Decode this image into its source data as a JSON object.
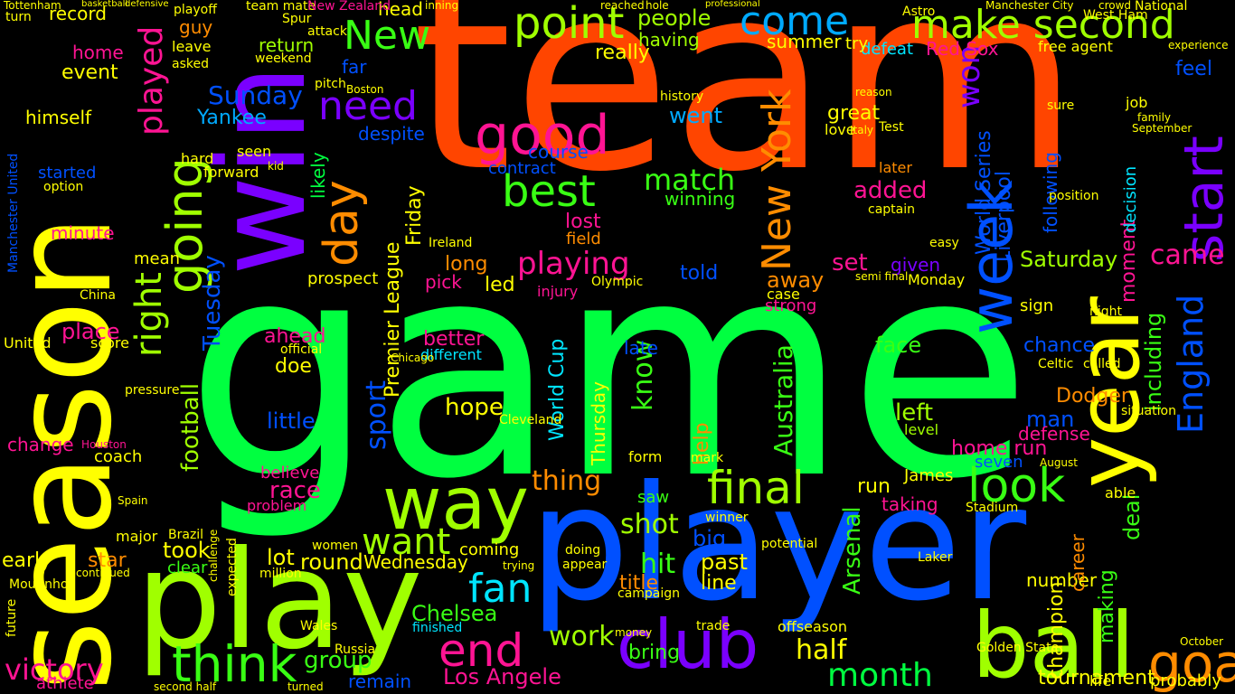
{
  "background": "#000000",
  "palette": [
    "#ff4500",
    "#00ff40",
    "#0050ff",
    "#ffff00",
    "#a0ff00",
    "#7a00ff",
    "#00e5ff",
    "#ff1493",
    "#ff8c00",
    "#39ff14"
  ],
  "words": [
    {
      "text": "team",
      "color": "#ff4500"
    },
    {
      "text": "game",
      "color": "#00ff40"
    },
    {
      "text": "player",
      "color": "#0050ff"
    },
    {
      "text": "season",
      "color": "#ffff00"
    },
    {
      "text": "play",
      "color": "#a0ff00"
    },
    {
      "text": "win",
      "color": "#7a00ff"
    },
    {
      "text": "ball",
      "color": "#a0ff00"
    },
    {
      "text": "year",
      "color": "#ffff00"
    },
    {
      "text": "goal",
      "color": "#ff8c00"
    },
    {
      "text": "point",
      "color": "#a0ff00"
    },
    {
      "text": "make second",
      "color": "#a0ff00"
    },
    {
      "text": "come",
      "color": "#00aaff"
    },
    {
      "text": "way",
      "color": "#a0ff00"
    },
    {
      "text": "club",
      "color": "#7a00ff"
    },
    {
      "text": "good",
      "color": "#ff1493"
    },
    {
      "text": "start",
      "color": "#7a00ff"
    },
    {
      "text": "week",
      "color": "#0050ff"
    },
    {
      "text": "going",
      "color": "#a0ff00"
    },
    {
      "text": "day",
      "color": "#ff8c00"
    },
    {
      "text": "need",
      "color": "#7a00ff"
    },
    {
      "text": "best",
      "color": "#39ff14"
    },
    {
      "text": "think",
      "color": "#39ff14"
    },
    {
      "text": "end",
      "color": "#ff1493"
    },
    {
      "text": "final",
      "color": "#a0ff00"
    },
    {
      "text": "look",
      "color": "#39ff14"
    },
    {
      "text": "New York",
      "color": "#ff8c00"
    },
    {
      "text": "England",
      "color": "#0050ff"
    },
    {
      "text": "fan",
      "color": "#00e5ff"
    },
    {
      "text": "want",
      "color": "#a0ff00"
    },
    {
      "text": "played",
      "color": "#ff1493"
    },
    {
      "text": "right",
      "color": "#a0ff00"
    },
    {
      "text": "New",
      "color": "#39ff14"
    },
    {
      "text": "won",
      "color": "#7a00ff"
    },
    {
      "text": "match",
      "color": "#39ff14"
    },
    {
      "text": "playing",
      "color": "#ff1493"
    },
    {
      "text": "month",
      "color": "#00ff40"
    },
    {
      "text": "half",
      "color": "#ffff00"
    },
    {
      "text": "work",
      "color": "#a0ff00"
    },
    {
      "text": "Chelsea",
      "color": "#39ff14"
    },
    {
      "text": "Los Angele",
      "color": "#ff1493"
    },
    {
      "text": "victory",
      "color": "#ff1493"
    },
    {
      "text": "group",
      "color": "#39ff14"
    },
    {
      "text": "shot",
      "color": "#a0ff00"
    },
    {
      "text": "hit",
      "color": "#39ff14"
    },
    {
      "text": "thing",
      "color": "#ff8c00"
    },
    {
      "text": "hope",
      "color": "#ffff00"
    },
    {
      "text": "know",
      "color": "#39ff14"
    },
    {
      "text": "sport",
      "color": "#0050ff"
    },
    {
      "text": "Australia",
      "color": "#39ff14"
    },
    {
      "text": "Arsenal",
      "color": "#39ff14"
    },
    {
      "text": "tournament",
      "color": "#ffff00"
    },
    {
      "text": "came",
      "color": "#ff1493"
    },
    {
      "text": "Saturday",
      "color": "#a0ff00"
    },
    {
      "text": "Sunday",
      "color": "#0050ff"
    },
    {
      "text": "Yankee",
      "color": "#00aaff"
    },
    {
      "text": "football",
      "color": "#a0ff00"
    },
    {
      "text": "Tuesday",
      "color": "#0050ff"
    },
    {
      "text": "Friday",
      "color": "#ffff00"
    },
    {
      "text": "Wednesday",
      "color": "#ffff00"
    },
    {
      "text": "Thursday",
      "color": "#ffff00"
    },
    {
      "text": "World Cup",
      "color": "#00e5ff"
    },
    {
      "text": "World Series",
      "color": "#0050ff"
    },
    {
      "text": "Premier League",
      "color": "#ffff00"
    },
    {
      "text": "Liverpool",
      "color": "#0050ff"
    },
    {
      "text": "Dodger",
      "color": "#ff8c00"
    },
    {
      "text": "home run",
      "color": "#ff1493"
    },
    {
      "text": "champion",
      "color": "#ffff00"
    },
    {
      "text": "making",
      "color": "#39ff14"
    },
    {
      "text": "number",
      "color": "#ffff00"
    },
    {
      "text": "chance",
      "color": "#0050ff"
    },
    {
      "text": "including",
      "color": "#39ff14"
    },
    {
      "text": "following",
      "color": "#0050ff"
    },
    {
      "text": "moment",
      "color": "#ff1493"
    },
    {
      "text": "decision",
      "color": "#00e5ff"
    },
    {
      "text": "career",
      "color": "#ff8c00"
    },
    {
      "text": "deal",
      "color": "#39ff14"
    },
    {
      "text": "added",
      "color": "#ff1493"
    },
    {
      "text": "great",
      "color": "#ffff00"
    },
    {
      "text": "later",
      "color": "#ff8c00"
    },
    {
      "text": "face",
      "color": "#39ff14"
    },
    {
      "text": "left",
      "color": "#a0ff00"
    },
    {
      "text": "set",
      "color": "#ff1493"
    },
    {
      "text": "given",
      "color": "#7a00ff"
    },
    {
      "text": "defense",
      "color": "#ff1493"
    },
    {
      "text": "seven",
      "color": "#0050ff"
    },
    {
      "text": "man",
      "color": "#0050ff"
    },
    {
      "text": "sign",
      "color": "#ffff00"
    },
    {
      "text": "run",
      "color": "#ffff00"
    },
    {
      "text": "James",
      "color": "#ffff00"
    },
    {
      "text": "taking",
      "color": "#ff1493"
    },
    {
      "text": "help",
      "color": "#ff8c00"
    },
    {
      "text": "past",
      "color": "#ffff00"
    },
    {
      "text": "line",
      "color": "#ffff00"
    },
    {
      "text": "big",
      "color": "#0050ff"
    },
    {
      "text": "bring",
      "color": "#39ff14"
    },
    {
      "text": "title",
      "color": "#ff8c00"
    },
    {
      "text": "saw",
      "color": "#39ff14"
    },
    {
      "text": "late",
      "color": "#0050ff"
    },
    {
      "text": "told",
      "color": "#0050ff"
    },
    {
      "text": "away",
      "color": "#ff8c00"
    },
    {
      "text": "led",
      "color": "#ffff00"
    },
    {
      "text": "long",
      "color": "#ff8c00"
    },
    {
      "text": "lost",
      "color": "#ff1493"
    },
    {
      "text": "field",
      "color": "#ff8c00"
    },
    {
      "text": "course",
      "color": "#0050ff"
    },
    {
      "text": "contract",
      "color": "#0050ff"
    },
    {
      "text": "winning",
      "color": "#39ff14"
    },
    {
      "text": "went",
      "color": "#00aaff"
    },
    {
      "text": "despite",
      "color": "#0050ff"
    },
    {
      "text": "likely",
      "color": "#00ff40"
    },
    {
      "text": "people",
      "color": "#a0ff00"
    },
    {
      "text": "really",
      "color": "#ffff00"
    },
    {
      "text": "having",
      "color": "#a0ff00"
    },
    {
      "text": "summer",
      "color": "#ffff00"
    },
    {
      "text": "defeat",
      "color": "#00e5ff"
    },
    {
      "text": "Red Sox",
      "color": "#ff1493"
    },
    {
      "text": "free agent",
      "color": "#ffff00"
    },
    {
      "text": "feel",
      "color": "#0050ff"
    },
    {
      "text": "far",
      "color": "#0050ff"
    },
    {
      "text": "return",
      "color": "#a0ff00"
    },
    {
      "text": "guy",
      "color": "#ff8c00"
    },
    {
      "text": "record",
      "color": "#ffff00"
    },
    {
      "text": "home",
      "color": "#ff1493"
    },
    {
      "text": "event",
      "color": "#ffff00"
    },
    {
      "text": "himself",
      "color": "#ffff00"
    },
    {
      "text": "started",
      "color": "#0050ff"
    },
    {
      "text": "minute",
      "color": "#ff1493"
    },
    {
      "text": "place",
      "color": "#ff1493"
    },
    {
      "text": "score",
      "color": "#ffff00"
    },
    {
      "text": "United",
      "color": "#ffff00"
    },
    {
      "text": "change",
      "color": "#ff1493"
    },
    {
      "text": "coach",
      "color": "#ffff00"
    },
    {
      "text": "early",
      "color": "#ffff00"
    },
    {
      "text": "star",
      "color": "#ff8c00"
    },
    {
      "text": "took",
      "color": "#ffff00"
    },
    {
      "text": "clear",
      "color": "#39ff14"
    },
    {
      "text": "lot",
      "color": "#ffff00"
    },
    {
      "text": "round",
      "color": "#ffff00"
    },
    {
      "text": "race",
      "color": "#ff1493"
    },
    {
      "text": "believe",
      "color": "#ff1493"
    },
    {
      "text": "problem",
      "color": "#ff1493"
    },
    {
      "text": "little",
      "color": "#0050ff"
    },
    {
      "text": "ahead",
      "color": "#ff1493"
    },
    {
      "text": "doe",
      "color": "#ffff00"
    },
    {
      "text": "pick",
      "color": "#ff1493"
    },
    {
      "text": "prospect",
      "color": "#ffff00"
    },
    {
      "text": "injury",
      "color": "#ff1493"
    },
    {
      "text": "better",
      "color": "#ff1493"
    },
    {
      "text": "different",
      "color": "#00e5ff"
    },
    {
      "text": "coming",
      "color": "#ffff00"
    },
    {
      "text": "remain",
      "color": "#0050ff"
    },
    {
      "text": "finished",
      "color": "#00e5ff"
    },
    {
      "text": "strong",
      "color": "#ff1493"
    },
    {
      "text": "case",
      "color": "#ffff00"
    },
    {
      "text": "Golden State",
      "color": "#ffff00"
    },
    {
      "text": "offseason",
      "color": "#ffff00"
    },
    {
      "text": "probably",
      "color": "#ffff00"
    },
    {
      "text": "life",
      "color": "#ffff00"
    },
    {
      "text": "athlete",
      "color": "#ff1493"
    },
    {
      "text": "head",
      "color": "#ffff00"
    },
    {
      "text": "team mate",
      "color": "#ffff00"
    },
    {
      "text": "New Zealand",
      "color": "#ff1493"
    },
    {
      "text": "Manchester United",
      "color": "#0050ff"
    },
    {
      "text": "playoff",
      "color": "#ffff00"
    },
    {
      "text": "hard",
      "color": "#ffff00"
    },
    {
      "text": "leave",
      "color": "#ffff00"
    },
    {
      "text": "forward",
      "color": "#ffff00"
    },
    {
      "text": "seen",
      "color": "#ffff00"
    },
    {
      "text": "mean",
      "color": "#ffff00"
    },
    {
      "text": "Monday",
      "color": "#ffff00"
    },
    {
      "text": "level",
      "color": "#a0ff00"
    },
    {
      "text": "able",
      "color": "#ffff00"
    },
    {
      "text": "situation",
      "color": "#ffff00"
    },
    {
      "text": "captain",
      "color": "#ffff00"
    },
    {
      "text": "love",
      "color": "#ffff00"
    },
    {
      "text": "position",
      "color": "#ffff00"
    },
    {
      "text": "job",
      "color": "#ffff00"
    },
    {
      "text": "family",
      "color": "#ffff00"
    },
    {
      "text": "Olympic",
      "color": "#ffff00"
    },
    {
      "text": "option",
      "color": "#ffff00"
    },
    {
      "text": "Cleveland",
      "color": "#ffff00"
    },
    {
      "text": "Brazil",
      "color": "#ffff00"
    },
    {
      "text": "Houston",
      "color": "#ff1493"
    },
    {
      "text": "Chicago",
      "color": "#ffff00"
    },
    {
      "text": "Russia",
      "color": "#ffff00"
    },
    {
      "text": "Wales",
      "color": "#ffff00"
    },
    {
      "text": "Stadium",
      "color": "#ffff00"
    },
    {
      "text": "Laker",
      "color": "#ffff00"
    },
    {
      "text": "Celtic",
      "color": "#ffff00"
    },
    {
      "text": "called",
      "color": "#ffff00"
    },
    {
      "text": "turned",
      "color": "#ffff00"
    },
    {
      "text": "second half",
      "color": "#ffff00"
    },
    {
      "text": "semi final",
      "color": "#ffff00"
    },
    {
      "text": "appear",
      "color": "#ffff00"
    },
    {
      "text": "trying",
      "color": "#ffff00"
    },
    {
      "text": "doing",
      "color": "#ffff00"
    },
    {
      "text": "money",
      "color": "#ffff00"
    },
    {
      "text": "trade",
      "color": "#ffff00"
    },
    {
      "text": "Mourinho",
      "color": "#ffff00"
    },
    {
      "text": "Spain",
      "color": "#ffff00"
    },
    {
      "text": "Boston",
      "color": "#ffff00"
    },
    {
      "text": "pitch",
      "color": "#ffff00"
    },
    {
      "text": "asked",
      "color": "#ffff00"
    },
    {
      "text": "China",
      "color": "#ffff00"
    },
    {
      "text": "major",
      "color": "#ffff00"
    },
    {
      "text": "women",
      "color": "#ffff00"
    },
    {
      "text": "million",
      "color": "#ffff00"
    },
    {
      "text": "campaign",
      "color": "#ffff00"
    },
    {
      "text": "potential",
      "color": "#ffff00"
    },
    {
      "text": "winner",
      "color": "#ffff00"
    },
    {
      "text": "October",
      "color": "#ffff00"
    },
    {
      "text": "September",
      "color": "#ffff00"
    },
    {
      "text": "August",
      "color": "#ffff00"
    },
    {
      "text": "night",
      "color": "#ffff00"
    },
    {
      "text": "sure",
      "color": "#ffff00"
    },
    {
      "text": "try",
      "color": "#ffff00"
    },
    {
      "text": "weekend",
      "color": "#ffff00"
    },
    {
      "text": "kid",
      "color": "#ffff00"
    },
    {
      "text": "official",
      "color": "#ffff00"
    },
    {
      "text": "pressure",
      "color": "#ffff00"
    },
    {
      "text": "challenge",
      "color": "#ffff00"
    },
    {
      "text": "expected",
      "color": "#ffff00"
    },
    {
      "text": "future",
      "color": "#ffff00"
    },
    {
      "text": "continued",
      "color": "#ffff00"
    },
    {
      "text": "history",
      "color": "#ffff00"
    },
    {
      "text": "form",
      "color": "#ffff00"
    },
    {
      "text": "mark",
      "color": "#ffff00"
    },
    {
      "text": "easy",
      "color": "#ffff00"
    },
    {
      "text": "Ireland",
      "color": "#ffff00"
    },
    {
      "text": "Italy",
      "color": "#ffff00"
    },
    {
      "text": "Test",
      "color": "#ffff00"
    },
    {
      "text": "Astro",
      "color": "#ffff00"
    },
    {
      "text": "National",
      "color": "#ffff00"
    },
    {
      "text": "reason",
      "color": "#ffff00"
    },
    {
      "text": "hole",
      "color": "#ffff00"
    },
    {
      "text": "Manchester City",
      "color": "#ffff00"
    },
    {
      "text": "West Ham",
      "color": "#ffff00"
    },
    {
      "text": "experience",
      "color": "#ffff00"
    },
    {
      "text": "Tottenham",
      "color": "#ffff00"
    },
    {
      "text": "turn",
      "color": "#ffff00"
    },
    {
      "text": "defensive",
      "color": "#ffff00"
    },
    {
      "text": "basketball",
      "color": "#ffff00"
    },
    {
      "text": "Spur",
      "color": "#ffff00"
    },
    {
      "text": "attack",
      "color": "#ffff00"
    },
    {
      "text": "inning",
      "color": "#ffff00"
    },
    {
      "text": "reached",
      "color": "#ffff00"
    },
    {
      "text": "crowd",
      "color": "#ffff00"
    },
    {
      "text": "professional",
      "color": "#ffff00"
    }
  ]
}
